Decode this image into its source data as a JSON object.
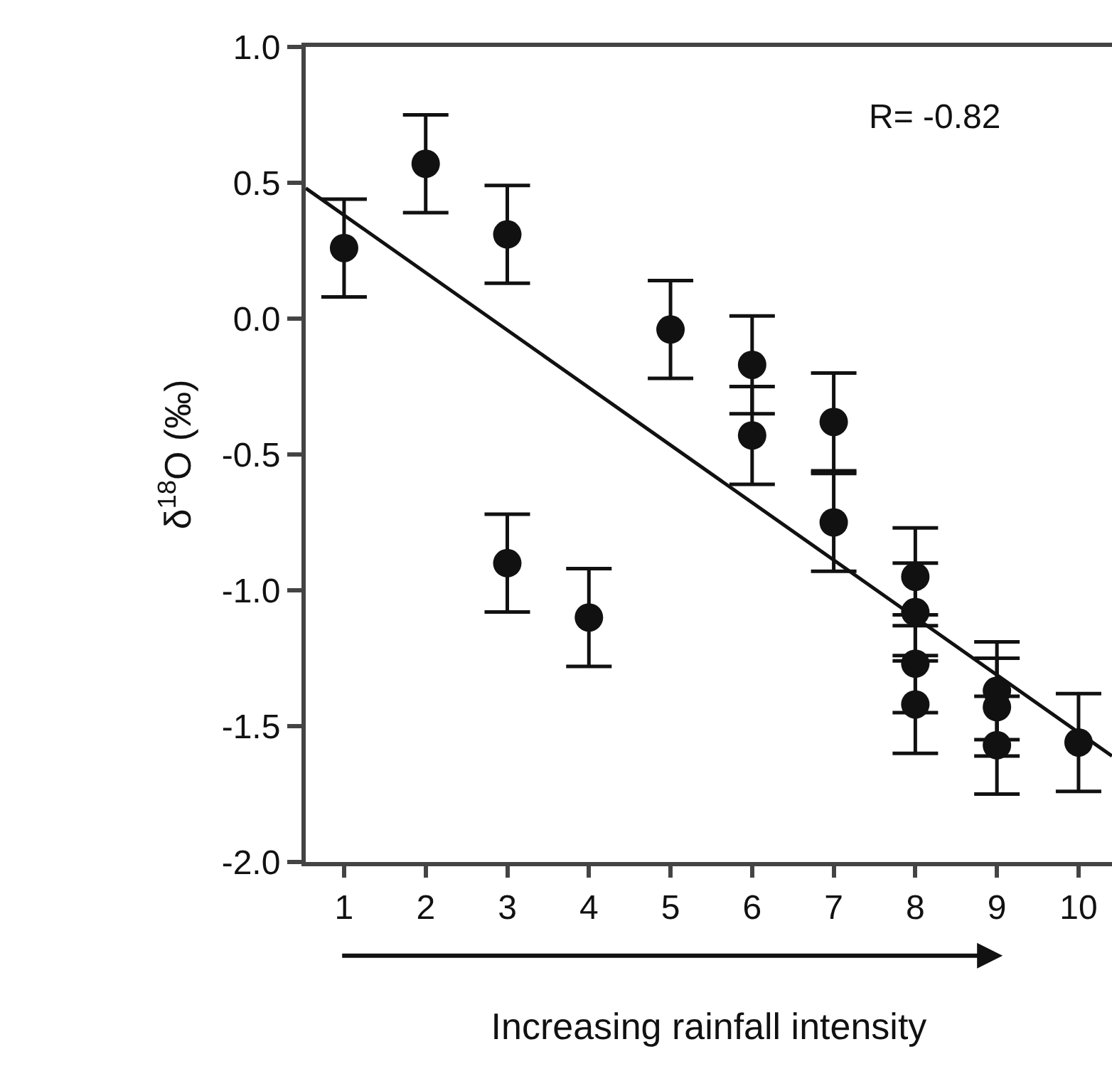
{
  "chart_data": {
    "type": "scatter",
    "xlabel": "Increasing rainfall intensity",
    "ylabel": "δ$^{18}$O (‰)",
    "annotations": [
      "R= -0.82"
    ],
    "xlim": [
      0.53,
      10.41
    ],
    "xticks": [
      1,
      2,
      3,
      4,
      5,
      6,
      7,
      8,
      9,
      10
    ],
    "ylim": [
      -2.0,
      1.0
    ],
    "yticks": [
      {
        "value": -2,
        "label": "-2.0"
      },
      {
        "value": -1.5,
        "label": "-1.5"
      },
      {
        "value": -1,
        "label": "-1.0"
      },
      {
        "value": -0.5,
        "label": "-0.5"
      },
      {
        "value": 0,
        "label": "0.0"
      },
      {
        "value": 0.5,
        "label": "0.5"
      },
      {
        "value": 1,
        "label": "1.0"
      }
    ],
    "grid": false,
    "marker": "circle",
    "series": [
      {
        "color": "#111111",
        "x": [
          1,
          2,
          3,
          3,
          4,
          5,
          6,
          6,
          7,
          7,
          8,
          8,
          8,
          8,
          9,
          9,
          9,
          10
        ],
        "values": [
          0.26,
          0.57,
          0.31,
          -0.9,
          -1.1,
          -0.04,
          -0.17,
          -0.43,
          -0.38,
          -0.75,
          -0.95,
          -1.08,
          -1.27,
          -1.42,
          -1.37,
          -1.43,
          -1.57,
          -1.56
        ],
        "errors": [
          0.18,
          0.18,
          0.18,
          0.18,
          0.18,
          0.18,
          0.18,
          0.18,
          0.18,
          0.18,
          0.18,
          0.18,
          0.18,
          0.18,
          0.18,
          0.18,
          0.18,
          0.18
        ]
      },
      {
        "type": "line",
        "color": "#111111",
        "x": [
          0.53,
          10.41
        ],
        "values": [
          0.48,
          -1.61
        ],
        "line_style": "solid",
        "marker": "none"
      }
    ]
  }
}
